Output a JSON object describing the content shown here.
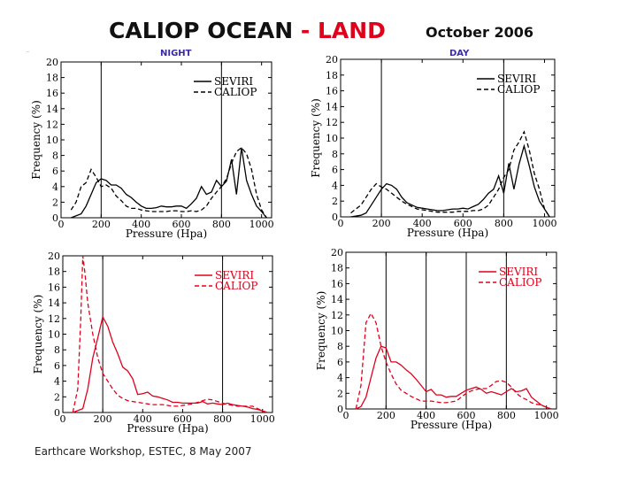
{
  "header": {
    "title_main": "CALIOP OCEAN",
    "title_dash": " - ",
    "title_land": "LAND",
    "date": "October 2006",
    "night_label": "NIGHT",
    "day_label": "DAY",
    "corner_mark": "–"
  },
  "footer": {
    "text": "Earthcare Workshop, ESTEC, 8 May 2007"
  },
  "chart_data": [
    {
      "id": "ocean-night",
      "type": "line",
      "title": "",
      "xlabel": "Pressure (Hpa)",
      "ylabel": "Frequency (%)",
      "xlim": [
        0,
        1050
      ],
      "ylim": [
        0,
        20
      ],
      "xticks": [
        0,
        200,
        400,
        600,
        800,
        1000
      ],
      "yticks": [
        0,
        2,
        4,
        6,
        8,
        10,
        12,
        14,
        16,
        18,
        20
      ],
      "vlines": [
        200,
        800
      ],
      "color": "#000000",
      "legend": "top-right",
      "series": [
        {
          "name": "SEVIRI",
          "style": "solid",
          "x": [
            50,
            100,
            125,
            150,
            175,
            200,
            225,
            250,
            275,
            300,
            325,
            350,
            375,
            400,
            425,
            450,
            475,
            500,
            525,
            550,
            575,
            600,
            625,
            650,
            675,
            700,
            725,
            750,
            775,
            800,
            825,
            850,
            875,
            900,
            925,
            950,
            975,
            1000,
            1025
          ],
          "y": [
            0,
            0.5,
            1.5,
            3,
            4.5,
            5,
            4.8,
            4.2,
            4.2,
            3.8,
            3,
            2.6,
            2,
            1.5,
            1.2,
            1.2,
            1.3,
            1.5,
            1.4,
            1.4,
            1.5,
            1.5,
            1.2,
            1.8,
            2.5,
            4,
            3,
            3.3,
            4.8,
            4,
            4.7,
            7.5,
            3,
            9,
            4.8,
            3,
            1.5,
            0.8,
            0
          ]
        },
        {
          "name": "CALIOP",
          "style": "dashed",
          "x": [
            50,
            75,
            100,
            125,
            150,
            175,
            200,
            225,
            250,
            275,
            300,
            325,
            350,
            375,
            400,
            425,
            450,
            475,
            500,
            525,
            550,
            575,
            600,
            625,
            650,
            675,
            700,
            725,
            750,
            775,
            800,
            825,
            850,
            875,
            900,
            925,
            950,
            975,
            1000,
            1025
          ],
          "y": [
            1,
            2,
            4,
            4.5,
            6.2,
            5.2,
            4,
            4.2,
            3.8,
            2.8,
            2.2,
            1.5,
            1.2,
            1.2,
            1,
            0.9,
            0.8,
            0.8,
            0.8,
            0.8,
            0.9,
            0.9,
            0.8,
            0.8,
            0.9,
            0.8,
            1,
            1.5,
            2.5,
            3.3,
            4,
            5,
            7,
            8.5,
            9,
            8.2,
            6.2,
            3,
            1,
            0
          ]
        }
      ]
    },
    {
      "id": "ocean-day",
      "type": "line",
      "title": "",
      "xlabel": "Pressure (Hpa)",
      "ylabel": "Frequency (%)",
      "xlim": [
        0,
        1050
      ],
      "ylim": [
        0,
        20
      ],
      "xticks": [
        0,
        200,
        400,
        600,
        800,
        1000
      ],
      "yticks": [
        0,
        2,
        4,
        6,
        8,
        10,
        12,
        14,
        16,
        18,
        20
      ],
      "vlines": [
        200,
        800
      ],
      "color": "#000000",
      "legend": "top-right",
      "series": [
        {
          "name": "SEVIRI",
          "style": "solid",
          "x": [
            50,
            100,
            125,
            150,
            175,
            200,
            225,
            250,
            275,
            300,
            325,
            350,
            375,
            400,
            425,
            450,
            475,
            500,
            525,
            550,
            575,
            600,
            625,
            650,
            675,
            700,
            725,
            750,
            775,
            800,
            825,
            850,
            875,
            900,
            925,
            950,
            975,
            1000,
            1025
          ],
          "y": [
            0,
            0.2,
            0.5,
            1.5,
            2.5,
            3.5,
            4.2,
            4,
            3.5,
            2.5,
            1.8,
            1.5,
            1.2,
            1.1,
            1,
            0.9,
            0.8,
            0.8,
            0.9,
            1,
            1,
            1.1,
            1,
            1.3,
            1.6,
            2.2,
            3,
            3.5,
            5.2,
            3,
            6.8,
            3.5,
            6.7,
            9,
            6.5,
            3.8,
            2,
            1,
            0
          ]
        },
        {
          "name": "CALIOP",
          "style": "dashed",
          "x": [
            50,
            75,
            100,
            125,
            150,
            175,
            200,
            225,
            250,
            275,
            300,
            325,
            350,
            375,
            400,
            425,
            450,
            475,
            500,
            525,
            550,
            575,
            600,
            625,
            650,
            675,
            700,
            725,
            750,
            775,
            800,
            825,
            850,
            875,
            900,
            925,
            950,
            975,
            1000,
            1025
          ],
          "y": [
            0.5,
            1,
            1.5,
            2.5,
            3.5,
            4.2,
            3.8,
            3.5,
            3,
            2.5,
            2,
            1.6,
            1.3,
            1,
            0.9,
            0.8,
            0.7,
            0.6,
            0.6,
            0.6,
            0.6,
            0.7,
            0.7,
            0.7,
            0.8,
            0.8,
            1,
            1.5,
            2.5,
            3.5,
            5,
            6,
            8.5,
            9.5,
            10.8,
            8.5,
            5.5,
            3.5,
            1,
            0
          ]
        }
      ]
    },
    {
      "id": "land-night",
      "type": "line",
      "title": "",
      "xlabel": "Pressure (Hpa)",
      "ylabel": "Frequency (%)",
      "xlim": [
        0,
        1050
      ],
      "ylim": [
        0,
        20
      ],
      "xticks": [
        0,
        200,
        400,
        600,
        800,
        1000
      ],
      "yticks": [
        0,
        2,
        4,
        6,
        8,
        10,
        12,
        14,
        16,
        18,
        20
      ],
      "vlines": [
        200,
        800
      ],
      "color": "#e0001b",
      "legend": "top-right",
      "series": [
        {
          "name": "SEVIRI",
          "style": "solid",
          "x": [
            50,
            100,
            125,
            150,
            175,
            200,
            225,
            250,
            275,
            300,
            325,
            350,
            375,
            400,
            425,
            450,
            475,
            500,
            525,
            550,
            575,
            600,
            625,
            650,
            675,
            700,
            725,
            750,
            775,
            800,
            825,
            850,
            875,
            900,
            925,
            950,
            975,
            1000,
            1025
          ],
          "y": [
            0,
            0.5,
            3,
            7,
            9.5,
            12.2,
            11,
            9,
            7.5,
            5.8,
            5.3,
            4.3,
            2.3,
            2.4,
            2.6,
            2.1,
            2,
            1.8,
            1.6,
            1.3,
            1.3,
            1.2,
            1.2,
            1.2,
            1.2,
            1.4,
            1.1,
            1.2,
            1.1,
            1,
            1.2,
            1,
            0.9,
            0.8,
            0.7,
            0.5,
            0.4,
            0.2,
            0
          ]
        },
        {
          "name": "CALIOP",
          "style": "dashed",
          "x": [
            50,
            75,
            90,
            100,
            110,
            125,
            150,
            175,
            200,
            225,
            250,
            275,
            300,
            325,
            350,
            375,
            400,
            425,
            450,
            475,
            500,
            525,
            550,
            575,
            600,
            625,
            650,
            675,
            700,
            725,
            750,
            775,
            800,
            825,
            850,
            875,
            900,
            925,
            950,
            975,
            1000,
            1025
          ],
          "y": [
            0,
            3,
            12,
            20,
            18,
            14,
            10,
            7,
            5,
            4,
            3,
            2.2,
            1.8,
            1.5,
            1.4,
            1.3,
            1.2,
            1.1,
            1,
            1,
            1,
            0.9,
            0.8,
            0.8,
            0.9,
            1,
            1.1,
            1.3,
            1.5,
            1.7,
            1.6,
            1.4,
            1.2,
            1,
            0.9,
            0.8,
            0.8,
            0.8,
            0.8,
            0.5,
            0.2,
            0
          ]
        }
      ]
    },
    {
      "id": "land-day",
      "type": "line",
      "title": "",
      "xlabel": "Pressure (Hpa)",
      "ylabel": "Frequency (%)",
      "xlim": [
        0,
        1050
      ],
      "ylim": [
        0,
        20
      ],
      "xticks": [
        0,
        200,
        400,
        600,
        800,
        1000
      ],
      "yticks": [
        0,
        2,
        4,
        6,
        8,
        10,
        12,
        14,
        16,
        18,
        20
      ],
      "vlines": [
        200,
        400,
        600,
        800
      ],
      "color": "#e0001b",
      "legend": "top-right",
      "series": [
        {
          "name": "SEVIRI",
          "style": "solid",
          "x": [
            50,
            75,
            100,
            125,
            150,
            175,
            200,
            225,
            250,
            275,
            300,
            325,
            350,
            375,
            400,
            425,
            450,
            475,
            500,
            525,
            550,
            575,
            600,
            625,
            650,
            675,
            700,
            725,
            750,
            775,
            800,
            825,
            850,
            875,
            900,
            925,
            950,
            975,
            1000,
            1025
          ],
          "y": [
            0,
            0.3,
            1.5,
            4,
            6.5,
            8,
            7.8,
            6,
            6,
            5.6,
            5,
            4.5,
            3.8,
            3,
            2.2,
            2.5,
            1.8,
            1.8,
            1.5,
            1.6,
            1.6,
            2,
            2.4,
            2.6,
            2.8,
            2.5,
            2,
            2.2,
            2,
            1.8,
            2.2,
            2.6,
            2.2,
            2.3,
            2.6,
            1.5,
            1,
            0.5,
            0.2,
            0
          ]
        },
        {
          "name": "CALIOP",
          "style": "dashed",
          "x": [
            50,
            75,
            100,
            125,
            150,
            175,
            200,
            225,
            250,
            275,
            300,
            325,
            350,
            375,
            400,
            425,
            450,
            475,
            500,
            525,
            550,
            575,
            600,
            625,
            650,
            675,
            700,
            725,
            750,
            775,
            800,
            825,
            850,
            875,
            900,
            925,
            950,
            975,
            1000,
            1025
          ],
          "y": [
            0,
            3,
            11,
            12.2,
            11,
            8,
            6,
            4.5,
            3.2,
            2.4,
            2,
            1.6,
            1.3,
            1,
            1,
            1,
            0.9,
            0.8,
            0.8,
            0.9,
            1,
            1.5,
            2,
            2.3,
            2.5,
            2.6,
            2.6,
            3,
            3.5,
            3.6,
            3.4,
            2.8,
            2,
            1.5,
            1.2,
            0.8,
            0.6,
            0.5,
            0.2,
            0
          ]
        }
      ]
    }
  ]
}
